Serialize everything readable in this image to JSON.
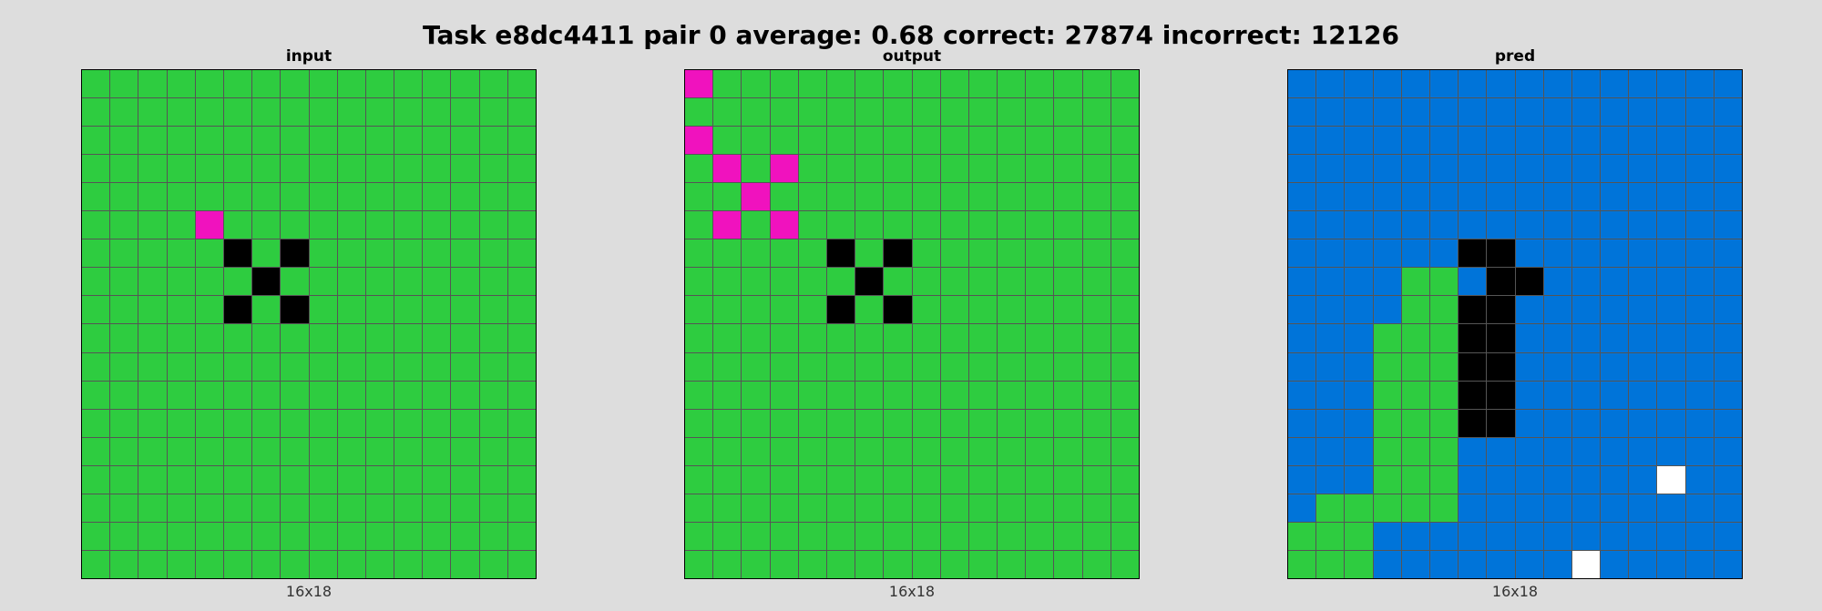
{
  "title": "Task e8dc4411 pair 0 average: 0.68 correct: 27874 incorrect: 12126",
  "colors": {
    "0": "#000000",
    "1": "#0074D9",
    "3": "#2ECC40",
    "5": "#FFFFFF",
    "6": "#F012BE"
  },
  "panels": [
    {
      "label": "input",
      "dims": "16x18",
      "grid": [
        "3333333333333333",
        "3333333333333333",
        "3333333333333333",
        "3333333333333333",
        "3333333333333333",
        "3333633333333333",
        "3333303033333333",
        "3333330333333333",
        "3333303033333333",
        "3333333333333333",
        "3333333333333333",
        "3333333333333333",
        "3333333333333333",
        "3333333333333333",
        "3333333333333333",
        "3333333333333333",
        "3333333333333333",
        "3333333333333333"
      ]
    },
    {
      "label": "output",
      "dims": "16x18",
      "grid": [
        "6333333333333333",
        "3333333333333333",
        "6333333333333333",
        "3636333333333333",
        "3363333333333333",
        "3636333333333333",
        "3333303033333333",
        "3333330333333333",
        "3333303033333333",
        "3333333333333333",
        "3333333333333333",
        "3333333333333333",
        "3333333333333333",
        "3333333333333333",
        "3333333333333333",
        "3333333333333333",
        "3333333333333333",
        "3333333333333333"
      ]
    },
    {
      "label": "pred",
      "dims": "16x18",
      "grid": [
        "1111111111111111",
        "1111111111111111",
        "1111111111111111",
        "1111111111111111",
        "1111111111111111",
        "1111111111111111",
        "1111110011111111",
        "1111331001111111",
        "1111330011111111",
        "1113330011111111",
        "1113330011111111",
        "1113330011111111",
        "1113330011111111",
        "1113331111111111",
        "1113331111111511",
        "1333331111111111",
        "3331111111111111",
        "3331111111511111"
      ]
    }
  ]
}
